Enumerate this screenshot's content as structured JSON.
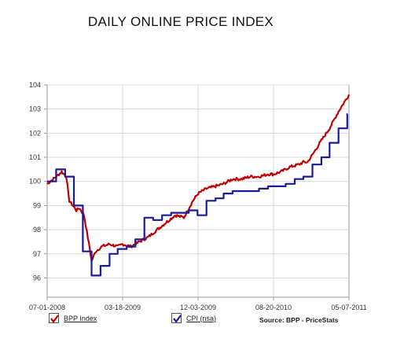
{
  "chart_data": {
    "type": "line",
    "title": "DAILY ONLINE PRICE INDEX",
    "xlabel": "",
    "ylabel": "",
    "ylim": [
      95.2,
      104
    ],
    "y_ticks": [
      96,
      97,
      98,
      99,
      100,
      101,
      102,
      103,
      104
    ],
    "x_tick_labels": [
      "07-01-2008",
      "03-18-2009",
      "12-03-2009",
      "08-20-2010",
      "05-07-2011"
    ],
    "x_range": [
      "2008-07-01",
      "2011-05-07"
    ],
    "grid": true,
    "legend_position": "bottom",
    "source": "Source: BPP - PriceStats",
    "series": [
      {
        "name": "BPP Index",
        "color": "#c00000",
        "style": "daily-line",
        "x": [
          "2008-07-01",
          "2008-08-01",
          "2008-08-20",
          "2008-09-05",
          "2008-09-15",
          "2008-10-10",
          "2008-10-20",
          "2008-11-05",
          "2008-11-25",
          "2008-12-01",
          "2008-12-15",
          "2009-01-05",
          "2009-02-01",
          "2009-03-01",
          "2009-03-18",
          "2009-04-15",
          "2009-05-15",
          "2009-06-15",
          "2009-07-15",
          "2009-08-15",
          "2009-09-15",
          "2009-10-15",
          "2009-11-15",
          "2009-12-03",
          "2010-01-01",
          "2010-02-01",
          "2010-03-01",
          "2010-04-01",
          "2010-05-01",
          "2010-06-01",
          "2010-07-01",
          "2010-08-01",
          "2010-08-20",
          "2010-09-15",
          "2010-10-15",
          "2010-11-15",
          "2010-12-01",
          "2010-12-15",
          "2011-01-01",
          "2011-02-01",
          "2011-03-01",
          "2011-04-01",
          "2011-05-07"
        ],
        "y": [
          99.9,
          100.2,
          100.4,
          100.2,
          99.2,
          98.8,
          98.9,
          98.6,
          97.2,
          96.7,
          97.1,
          97.3,
          97.4,
          97.3,
          97.4,
          97.3,
          97.5,
          97.7,
          98.0,
          98.3,
          98.6,
          98.5,
          99.2,
          99.5,
          99.7,
          99.8,
          99.9,
          100.1,
          100.1,
          100.2,
          100.2,
          100.3,
          100.3,
          100.4,
          100.6,
          100.7,
          100.8,
          100.8,
          101.1,
          101.7,
          102.2,
          102.9,
          103.6
        ]
      },
      {
        "name": "CPI (nsa)",
        "color": "#1a1a9e",
        "style": "monthly-step",
        "x": [
          "2008-07-01",
          "2008-08-01",
          "2008-09-01",
          "2008-10-01",
          "2008-11-01",
          "2008-12-01",
          "2009-01-01",
          "2009-02-01",
          "2009-03-01",
          "2009-04-01",
          "2009-05-01",
          "2009-06-01",
          "2009-07-01",
          "2009-08-01",
          "2009-09-01",
          "2009-10-01",
          "2009-11-01",
          "2009-12-01",
          "2010-01-01",
          "2010-02-01",
          "2010-03-01",
          "2010-04-01",
          "2010-05-01",
          "2010-06-01",
          "2010-07-01",
          "2010-08-01",
          "2010-09-01",
          "2010-10-01",
          "2010-11-01",
          "2010-12-01",
          "2011-01-01",
          "2011-02-01",
          "2011-03-01",
          "2011-04-01",
          "2011-05-01"
        ],
        "y": [
          100.0,
          100.5,
          100.2,
          99.0,
          97.1,
          96.1,
          96.5,
          97.0,
          97.2,
          97.3,
          97.6,
          98.5,
          98.4,
          98.6,
          98.7,
          98.7,
          98.8,
          98.6,
          99.2,
          99.3,
          99.5,
          99.6,
          99.6,
          99.6,
          99.7,
          99.8,
          99.8,
          99.9,
          100.1,
          100.2,
          100.7,
          101.0,
          101.6,
          102.2,
          102.8
        ]
      }
    ]
  }
}
